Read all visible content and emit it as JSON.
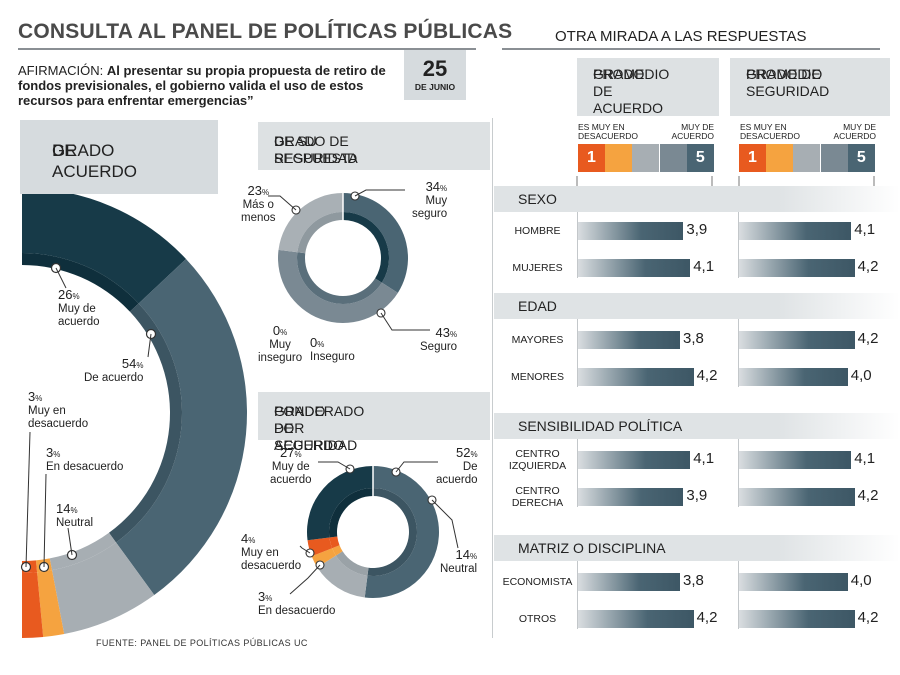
{
  "header": {
    "title": "CONSULTA AL PANEL DE POLÍTICAS PÚBLICAS",
    "right_title": "OTRA MIRADA A LAS RESPUESTAS",
    "claim_prefix": "AFIRMACIÓN:",
    "claim_text": "Al presentar su propia propuesta de retiro de fondos previsionales, el gobierno valida el uso de estos recursos para enfrentar emergencias”",
    "date_day": "25",
    "date_month": "DE JUNIO"
  },
  "colors": {
    "muy_de_acuerdo": "#173a48",
    "de_acuerdo": "#4a6573",
    "neutral": "#a7aeb3",
    "en_desacuerdo": "#f5a340",
    "muy_en_desacuerdo": "#e85a1f",
    "muy_seguro": "#4a6573",
    "seguro": "#7a8993",
    "mas_o_menos": "#a9b0b5"
  },
  "acuerdo_panel": {
    "title_line1": "GRADO",
    "title_line2": "DE ACUERDO",
    "chart_data": {
      "type": "pie",
      "categories": [
        "Muy de acuerdo",
        "De acuerdo",
        "Neutral",
        "En desacuerdo",
        "Muy en desacuerdo"
      ],
      "values": [
        26,
        54,
        14,
        3,
        3
      ],
      "labels": [
        {
          "pct": "26",
          "l1": "Muy de",
          "l2": "acuerdo"
        },
        {
          "pct": "54",
          "l1": "De acuerdo",
          "l2": ""
        },
        {
          "pct": "14",
          "l1": "Neutral",
          "l2": ""
        },
        {
          "pct": "3",
          "l1": "En desacuerdo",
          "l2": ""
        },
        {
          "pct": "3",
          "l1": "Muy en",
          "l2": "desacuerdo"
        }
      ]
    }
  },
  "seguridad_panel": {
    "title_line1": "GRADO DE SEGURIDAD",
    "title_line2": "DE SU RESPUESTA",
    "chart_data": {
      "type": "pie",
      "categories": [
        "Muy seguro",
        "Seguro",
        "Más o menos",
        "Muy inseguro",
        "Inseguro"
      ],
      "values": [
        34,
        43,
        23,
        0,
        0
      ],
      "labels": [
        {
          "pct": "34",
          "l1": "Muy",
          "l2": "seguro"
        },
        {
          "pct": "43",
          "l1": "Seguro",
          "l2": ""
        },
        {
          "pct": "23",
          "l1": "Más o",
          "l2": "menos"
        },
        {
          "pct": "0",
          "l1": "Muy",
          "l2": "inseguro"
        },
        {
          "pct": "0",
          "l1": "Inseguro",
          "l2": ""
        }
      ]
    }
  },
  "ponderado_panel": {
    "title_line1": "GRADO DE ACUERDO",
    "title_line2": "PONDERADO POR  SEGURIDAD",
    "chart_data": {
      "type": "pie",
      "categories": [
        "Muy de acuerdo",
        "De acuerdo",
        "Neutral",
        "En desacuerdo",
        "Muy en desacuerdo"
      ],
      "values": [
        27,
        52,
        14,
        3,
        4
      ],
      "labels": [
        {
          "pct": "27",
          "l1": "Muy de",
          "l2": "acuerdo"
        },
        {
          "pct": "52",
          "l1": "De",
          "l2": "acuerdo"
        },
        {
          "pct": "14",
          "l1": "Neutral",
          "l2": ""
        },
        {
          "pct": "3",
          "l1": "En desacuerdo",
          "l2": ""
        },
        {
          "pct": "4",
          "l1": "Muy en",
          "l2": "desacuerdo"
        }
      ]
    }
  },
  "mirada": {
    "col1_title_l1": "GRADO DE ACUERDO",
    "col1_title_l2": "PROMEDIO",
    "col2_title_l1": "GRADO DE SEGURIDAD",
    "col2_title_l2": "PROMEDIO",
    "scale_left_l1": "ES MUY EN",
    "scale_left_l2": "DESACUERDO",
    "scale_right_l1": "MUY DE",
    "scale_right_l2": "ACUERDO",
    "scale_min": "1",
    "scale_max": "5",
    "sections": [
      {
        "title": "SEXO",
        "rows": [
          {
            "l1": "HOMBRE",
            "l2": "",
            "acuerdo": "3,9",
            "seguridad": "4,1"
          },
          {
            "l1": "MUJERES",
            "l2": "",
            "acuerdo": "4,1",
            "seguridad": "4,2"
          }
        ]
      },
      {
        "title": "EDAD",
        "rows": [
          {
            "l1": "MAYORES",
            "l2": "",
            "acuerdo": "3,8",
            "seguridad": "4,2"
          },
          {
            "l1": "MENORES",
            "l2": "",
            "acuerdo": "4,2",
            "seguridad": "4,0"
          }
        ]
      },
      {
        "title": "SENSIBILIDAD POLÍTICA",
        "rows": [
          {
            "l1": "CENTRO",
            "l2": "IZQUIERDA",
            "acuerdo": "4,1",
            "seguridad": "4,1"
          },
          {
            "l1": "CENTRO",
            "l2": "DERECHA",
            "acuerdo": "3,9",
            "seguridad": "4,2"
          }
        ]
      },
      {
        "title": "MATRIZ O DISCIPLINA",
        "rows": [
          {
            "l1": "ECONOMISTA",
            "l2": "",
            "acuerdo": "3,8",
            "seguridad": "4,0"
          },
          {
            "l1": "OTROS",
            "l2": "",
            "acuerdo": "4,2",
            "seguridad": "4,2"
          }
        ]
      }
    ],
    "chart_data": {
      "type": "bar",
      "categories": [
        "HOMBRE",
        "MUJERES",
        "MAYORES",
        "MENORES",
        "CENTRO IZQUIERDA",
        "CENTRO DERECHA",
        "ECONOMISTA",
        "OTROS"
      ],
      "series": [
        {
          "name": "GRADO DE ACUERDO PROMEDIO",
          "values": [
            3.9,
            4.1,
            3.8,
            4.2,
            4.1,
            3.9,
            3.8,
            4.2
          ]
        },
        {
          "name": "GRADO DE SEGURIDAD PROMEDIO",
          "values": [
            4.1,
            4.2,
            4.2,
            4.0,
            4.1,
            4.2,
            4.0,
            4.2
          ]
        }
      ],
      "xlim": [
        1,
        5
      ]
    }
  },
  "footer": {
    "source": "FUENTE: PANEL DE POLÍTICAS PÚBLICAS UC"
  }
}
